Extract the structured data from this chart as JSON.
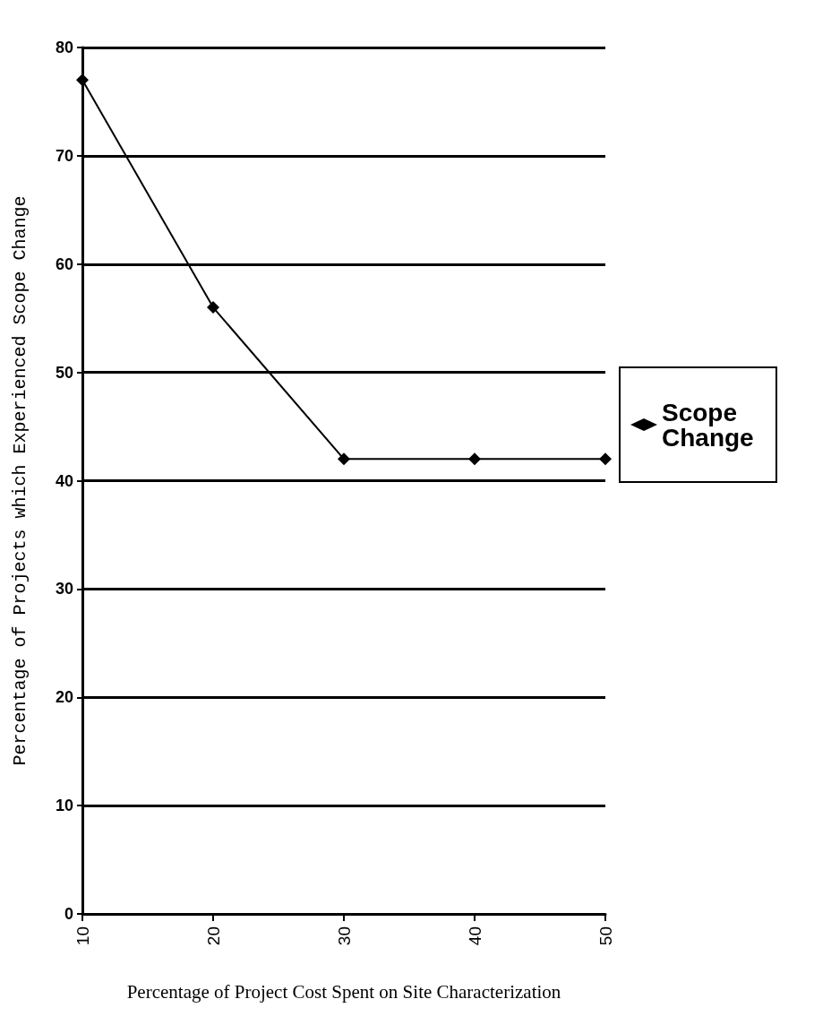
{
  "chart_data": {
    "type": "line",
    "xlabel": "Percentage of Project Cost Spent on Site Characterization",
    "ylabel": "Percentage of Projects which Experienced Scope Change",
    "x": [
      10,
      20,
      30,
      40,
      50
    ],
    "series": [
      {
        "name": "Scope Change",
        "color": "#000000",
        "values": [
          77,
          56,
          42,
          42,
          42
        ]
      }
    ],
    "xlim": [
      10,
      50
    ],
    "xticks": [
      10,
      20,
      30,
      40,
      50
    ],
    "ylim": [
      0,
      80
    ],
    "yticks": [
      0,
      10,
      20,
      30,
      40,
      50,
      60,
      70,
      80
    ],
    "grid": "y",
    "legend": "right",
    "marker": "diamond",
    "line_style": "solid"
  }
}
